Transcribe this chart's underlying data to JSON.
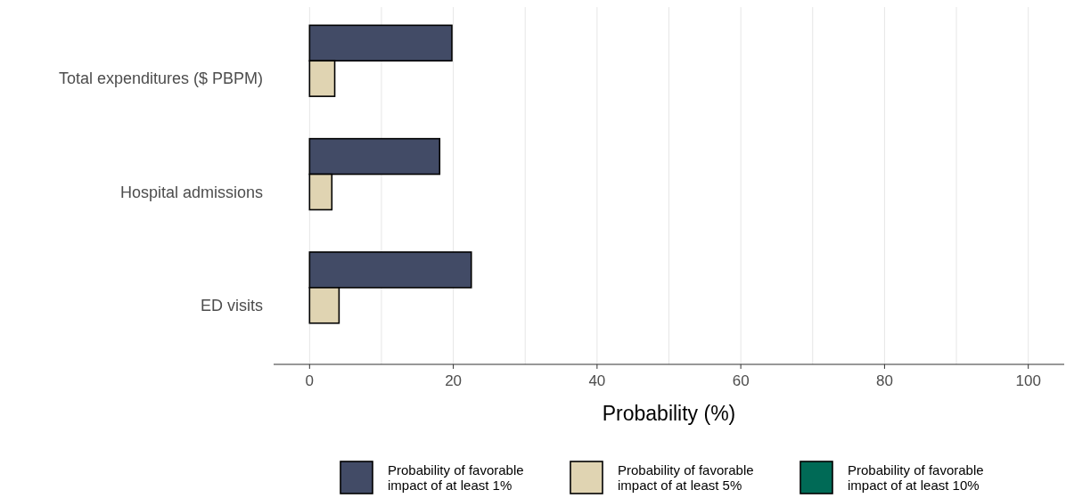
{
  "chart_data": {
    "type": "bar",
    "orientation": "horizontal",
    "xlabel": "Probability (%)",
    "categories": [
      "Total expenditures ($ PBPM)",
      "Hospital admissions",
      "ED visits"
    ],
    "series": [
      {
        "name": "Probability of favorable impact of at least 1%",
        "color": "#424b66",
        "values": [
          19.8,
          18.1,
          22.5
        ]
      },
      {
        "name": "Probability of favorable impact of at least 5%",
        "color": "#e0d4b2",
        "values": [
          3.5,
          3.1,
          4.1
        ]
      },
      {
        "name": "Probability of favorable impact of at least 10%",
        "color": "#006a56",
        "values": [
          0,
          0,
          0
        ]
      }
    ],
    "xlim": [
      -5,
      105
    ],
    "xticks": [
      0,
      {
        "value": 10,
        "label": null
      },
      20,
      {
        "value": 30,
        "label": null
      },
      40,
      {
        "value": 50,
        "label": null
      },
      60,
      {
        "value": 70,
        "label": null
      },
      80,
      {
        "value": 90,
        "label": null
      },
      100
    ],
    "grid": "x",
    "legend": "bottom"
  }
}
